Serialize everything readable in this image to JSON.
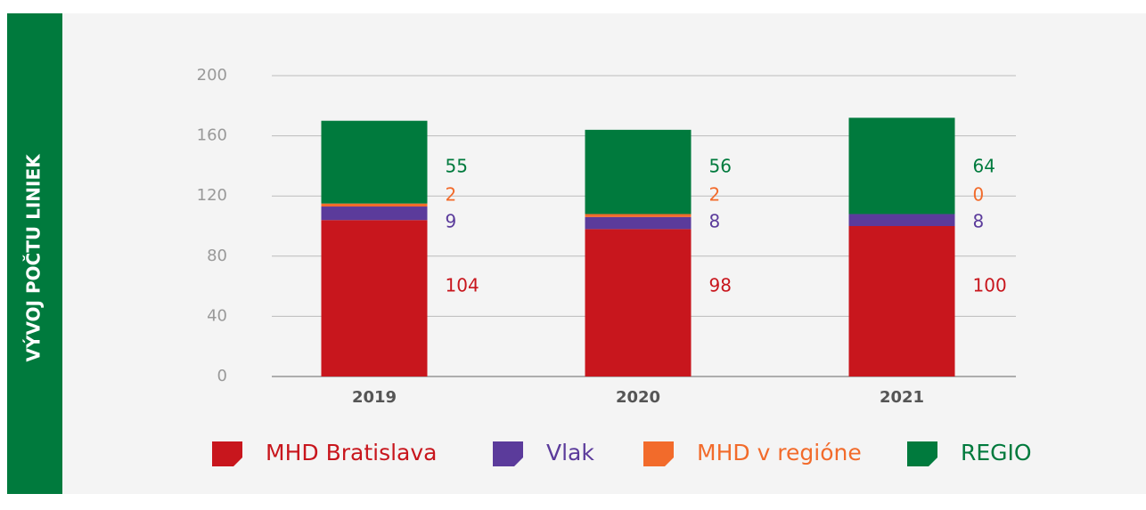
{
  "chart_data": {
    "type": "stacked_bar",
    "side_title": "VÝVOJ POČTU LINIEK",
    "categories": [
      "2019",
      "2020",
      "2021"
    ],
    "series": [
      {
        "name": "MHD Bratislava",
        "color": "#c8161d",
        "values": [
          104,
          98,
          100
        ]
      },
      {
        "name": "Vlak",
        "color": "#5b3b9b",
        "values": [
          9,
          8,
          8
        ]
      },
      {
        "name": "MHD v regióne",
        "color": "#f26b2b",
        "values": [
          2,
          2,
          0
        ]
      },
      {
        "name": "REGIO",
        "color": "#007a3d",
        "values": [
          55,
          56,
          64
        ]
      }
    ],
    "ylim": [
      0,
      200
    ],
    "yticks": [
      0,
      40,
      80,
      120,
      160,
      200
    ],
    "grid": true,
    "legend": "bottom"
  }
}
